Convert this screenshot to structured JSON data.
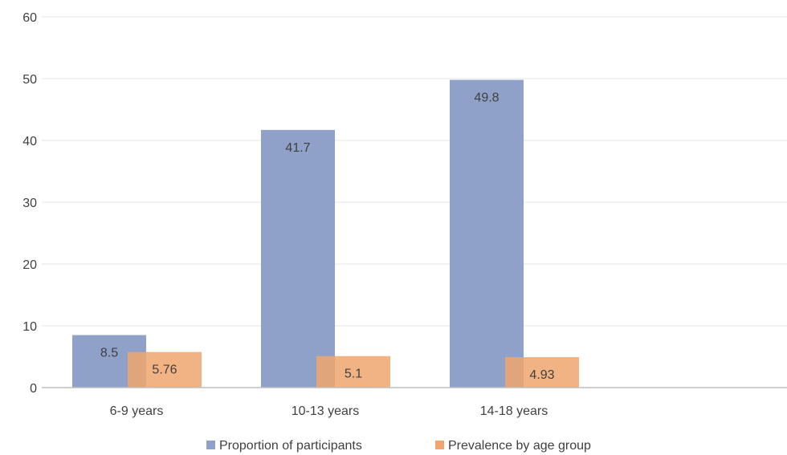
{
  "chart_data": {
    "type": "bar",
    "categories": [
      "6-9 years",
      "10-13 years",
      "14-18 years"
    ],
    "series": [
      {
        "name": "Proportion of participants",
        "values": [
          8.5,
          41.7,
          49.8
        ],
        "color": "#8fa1c8",
        "opacity": 1
      },
      {
        "name": "Prevalence by age group",
        "values": [
          5.76,
          5.1,
          4.93
        ],
        "color": "#f0a66e",
        "opacity": 0.85
      }
    ],
    "data_labels": [
      [
        "8.5",
        "41.7",
        "49.8"
      ],
      [
        "5.76",
        "5.1",
        "4.93"
      ]
    ],
    "yticks": [
      "0",
      "10",
      "20",
      "30",
      "40",
      "50",
      "60"
    ],
    "ylim": [
      0,
      60
    ],
    "grid": true,
    "legend_position": "bottom",
    "title": "",
    "xlabel": "",
    "ylabel": ""
  }
}
